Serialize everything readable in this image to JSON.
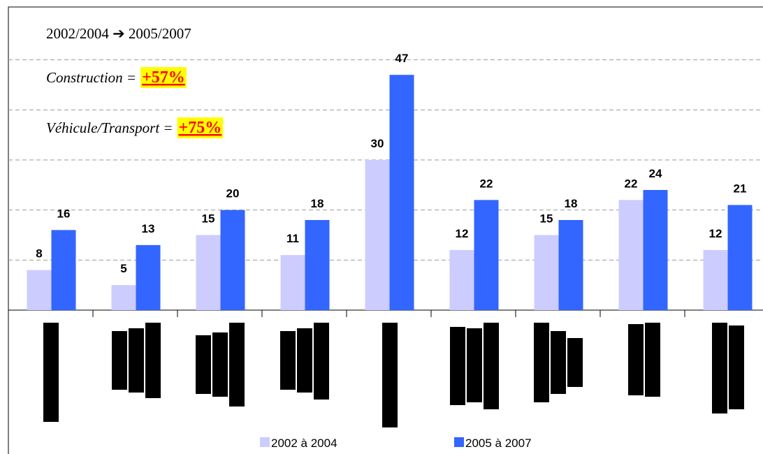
{
  "chart_data": {
    "type": "bar",
    "categories": [
      null,
      null,
      null,
      null,
      null,
      null,
      null,
      null,
      null
    ],
    "series": [
      {
        "name": "2002 à 2004",
        "color": "#ccccff",
        "values": [
          8,
          5,
          15,
          11,
          30,
          12,
          15,
          22,
          12
        ]
      },
      {
        "name": "2005 à 2007",
        "color": "#3366ff",
        "values": [
          16,
          13,
          20,
          18,
          47,
          22,
          18,
          24,
          21
        ]
      }
    ],
    "ylim": [
      0,
      60
    ],
    "yticks": [
      0,
      10,
      20,
      30,
      40,
      50
    ],
    "grid": true,
    "legend": "bottom",
    "annotations": [
      {
        "text": "2002/2004 ➔ 2005/2007"
      },
      {
        "text": "Construction =",
        "highlight": "+57%"
      },
      {
        "text": "Véhicule/Transport =",
        "highlight": "+75%"
      }
    ]
  }
}
